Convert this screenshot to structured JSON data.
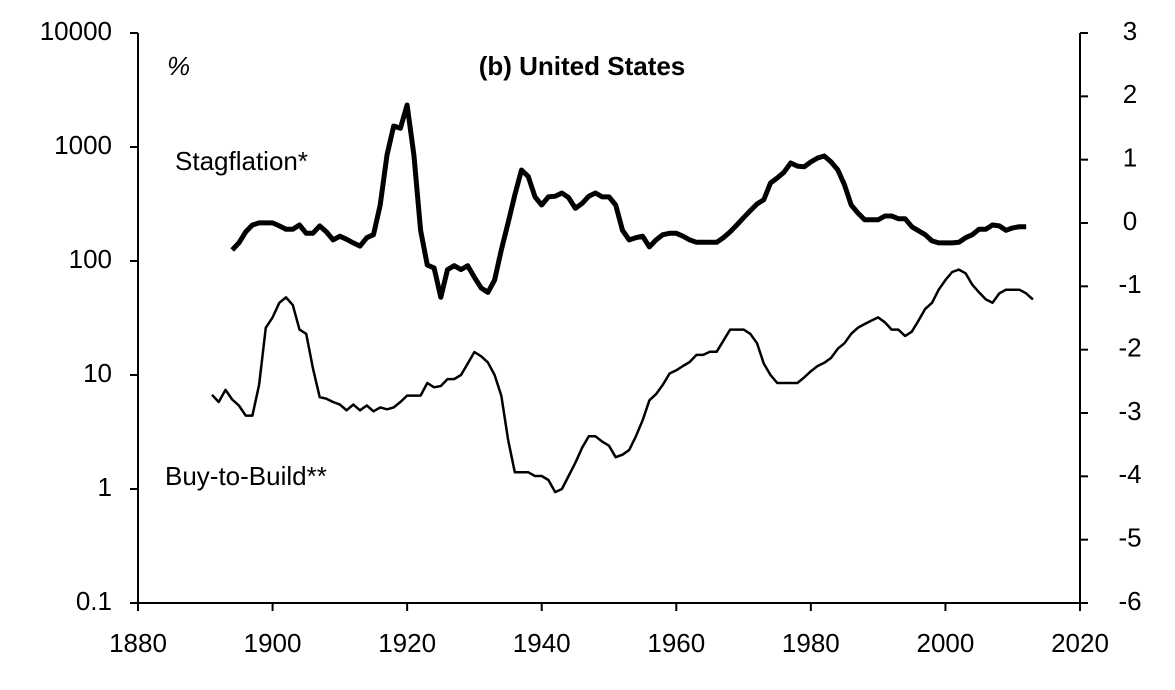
{
  "chart_data": {
    "type": "line",
    "title": "(b) United States",
    "y_unit_label": "%",
    "annotations": [
      "Stagflation*",
      "Buy-to-Build**"
    ],
    "x": [
      1891,
      1892,
      1893,
      1894,
      1895,
      1896,
      1897,
      1898,
      1899,
      1900,
      1901,
      1902,
      1903,
      1904,
      1905,
      1906,
      1907,
      1908,
      1909,
      1910,
      1911,
      1912,
      1913,
      1914,
      1915,
      1916,
      1917,
      1918,
      1919,
      1920,
      1921,
      1922,
      1923,
      1924,
      1925,
      1926,
      1927,
      1928,
      1929,
      1930,
      1931,
      1932,
      1933,
      1934,
      1935,
      1936,
      1937,
      1938,
      1939,
      1940,
      1941,
      1942,
      1943,
      1944,
      1945,
      1946,
      1947,
      1948,
      1949,
      1950,
      1951,
      1952,
      1953,
      1954,
      1955,
      1956,
      1957,
      1958,
      1959,
      1960,
      1961,
      1962,
      1963,
      1964,
      1965,
      1966,
      1967,
      1968,
      1969,
      1970,
      1971,
      1972,
      1973,
      1974,
      1975,
      1976,
      1977,
      1978,
      1979,
      1980,
      1981,
      1982,
      1983,
      1984,
      1985,
      1986,
      1987,
      1988,
      1989,
      1990,
      1991,
      1992,
      1993,
      1994,
      1995,
      1996,
      1997,
      1998,
      1999,
      2000,
      2001,
      2002,
      2003,
      2004,
      2005,
      2006,
      2007,
      2008,
      2009,
      2010,
      2011,
      2012,
      2013
    ],
    "series": [
      {
        "name": "Stagflation*",
        "color": "#000000",
        "width": 5,
        "values": [
          null,
          null,
          null,
          125,
          144,
          180,
          207,
          216,
          216,
          216,
          203,
          190,
          190,
          207,
          175,
          175,
          203,
          180,
          153,
          165,
          155,
          144,
          135,
          160,
          170,
          310,
          851,
          1528,
          1460,
          2336,
          851,
          186,
          92,
          87,
          48,
          84,
          91,
          84,
          91,
          72,
          58,
          53,
          68,
          125,
          216,
          379,
          628,
          550,
          365,
          310,
          365,
          370,
          395,
          360,
          290,
          320,
          370,
          395,
          365,
          365,
          310,
          186,
          153,
          160,
          165,
          133,
          153,
          170,
          175,
          175,
          165,
          153,
          146,
          146,
          146,
          146,
          160,
          180,
          207,
          240,
          276,
          316,
          345,
          483,
          535,
          600,
          724,
          680,
          670,
          740,
          800,
          833,
          740,
          630,
          465,
          310,
          263,
          230,
          230,
          230,
          248,
          248,
          235,
          235,
          200,
          184,
          170,
          150,
          144,
          144,
          144,
          146,
          160,
          170,
          190,
          190,
          207,
          203,
          186,
          195,
          200,
          200,
          null
        ]
      },
      {
        "name": "Buy-to-Build**",
        "color": "#000000",
        "width": 2.5,
        "values": [
          6.7,
          5.8,
          7.4,
          6.1,
          5.4,
          4.4,
          4.4,
          8.2,
          26,
          32,
          43,
          48,
          41,
          25,
          23,
          11.5,
          6.4,
          6.2,
          5.8,
          5.5,
          4.9,
          5.5,
          4.9,
          5.4,
          4.8,
          5.2,
          5.0,
          5.2,
          5.8,
          6.6,
          6.6,
          6.6,
          8.5,
          7.8,
          8.0,
          9.2,
          9.2,
          10,
          12.6,
          15.9,
          14.6,
          12.9,
          10,
          6.6,
          2.7,
          1.4,
          1.4,
          1.4,
          1.3,
          1.3,
          1.2,
          0.94,
          1.0,
          1.3,
          1.7,
          2.3,
          2.9,
          2.9,
          2.6,
          2.4,
          1.9,
          2.0,
          2.2,
          2.9,
          4.0,
          6.0,
          6.8,
          8.2,
          10.3,
          11,
          12,
          13,
          15,
          15,
          16,
          16,
          20,
          25,
          25,
          25,
          23,
          19,
          12.6,
          10,
          8.5,
          8.5,
          8.5,
          8.5,
          9.5,
          10.8,
          12,
          12.8,
          14.1,
          17,
          19,
          23,
          26,
          28,
          30,
          32,
          29,
          25,
          25,
          22,
          24,
          30,
          38,
          43,
          56,
          68,
          80,
          84,
          78,
          62,
          53,
          46,
          43,
          52,
          56,
          56,
          56,
          52,
          46
        ]
      }
    ],
    "xlim": [
      1880,
      2020
    ],
    "xticks": [
      1880,
      1900,
      1920,
      1940,
      1960,
      1980,
      2000,
      2020
    ],
    "ylim": [
      0.1,
      10000
    ],
    "yticks": [
      0.1,
      1,
      10,
      100,
      1000,
      10000
    ],
    "y_log_scale": true,
    "y2lim": [
      -6,
      3
    ],
    "y2ticks": [
      -6,
      -5,
      -4,
      -3,
      -2,
      -1,
      0,
      1,
      2,
      3
    ],
    "grid": false
  }
}
